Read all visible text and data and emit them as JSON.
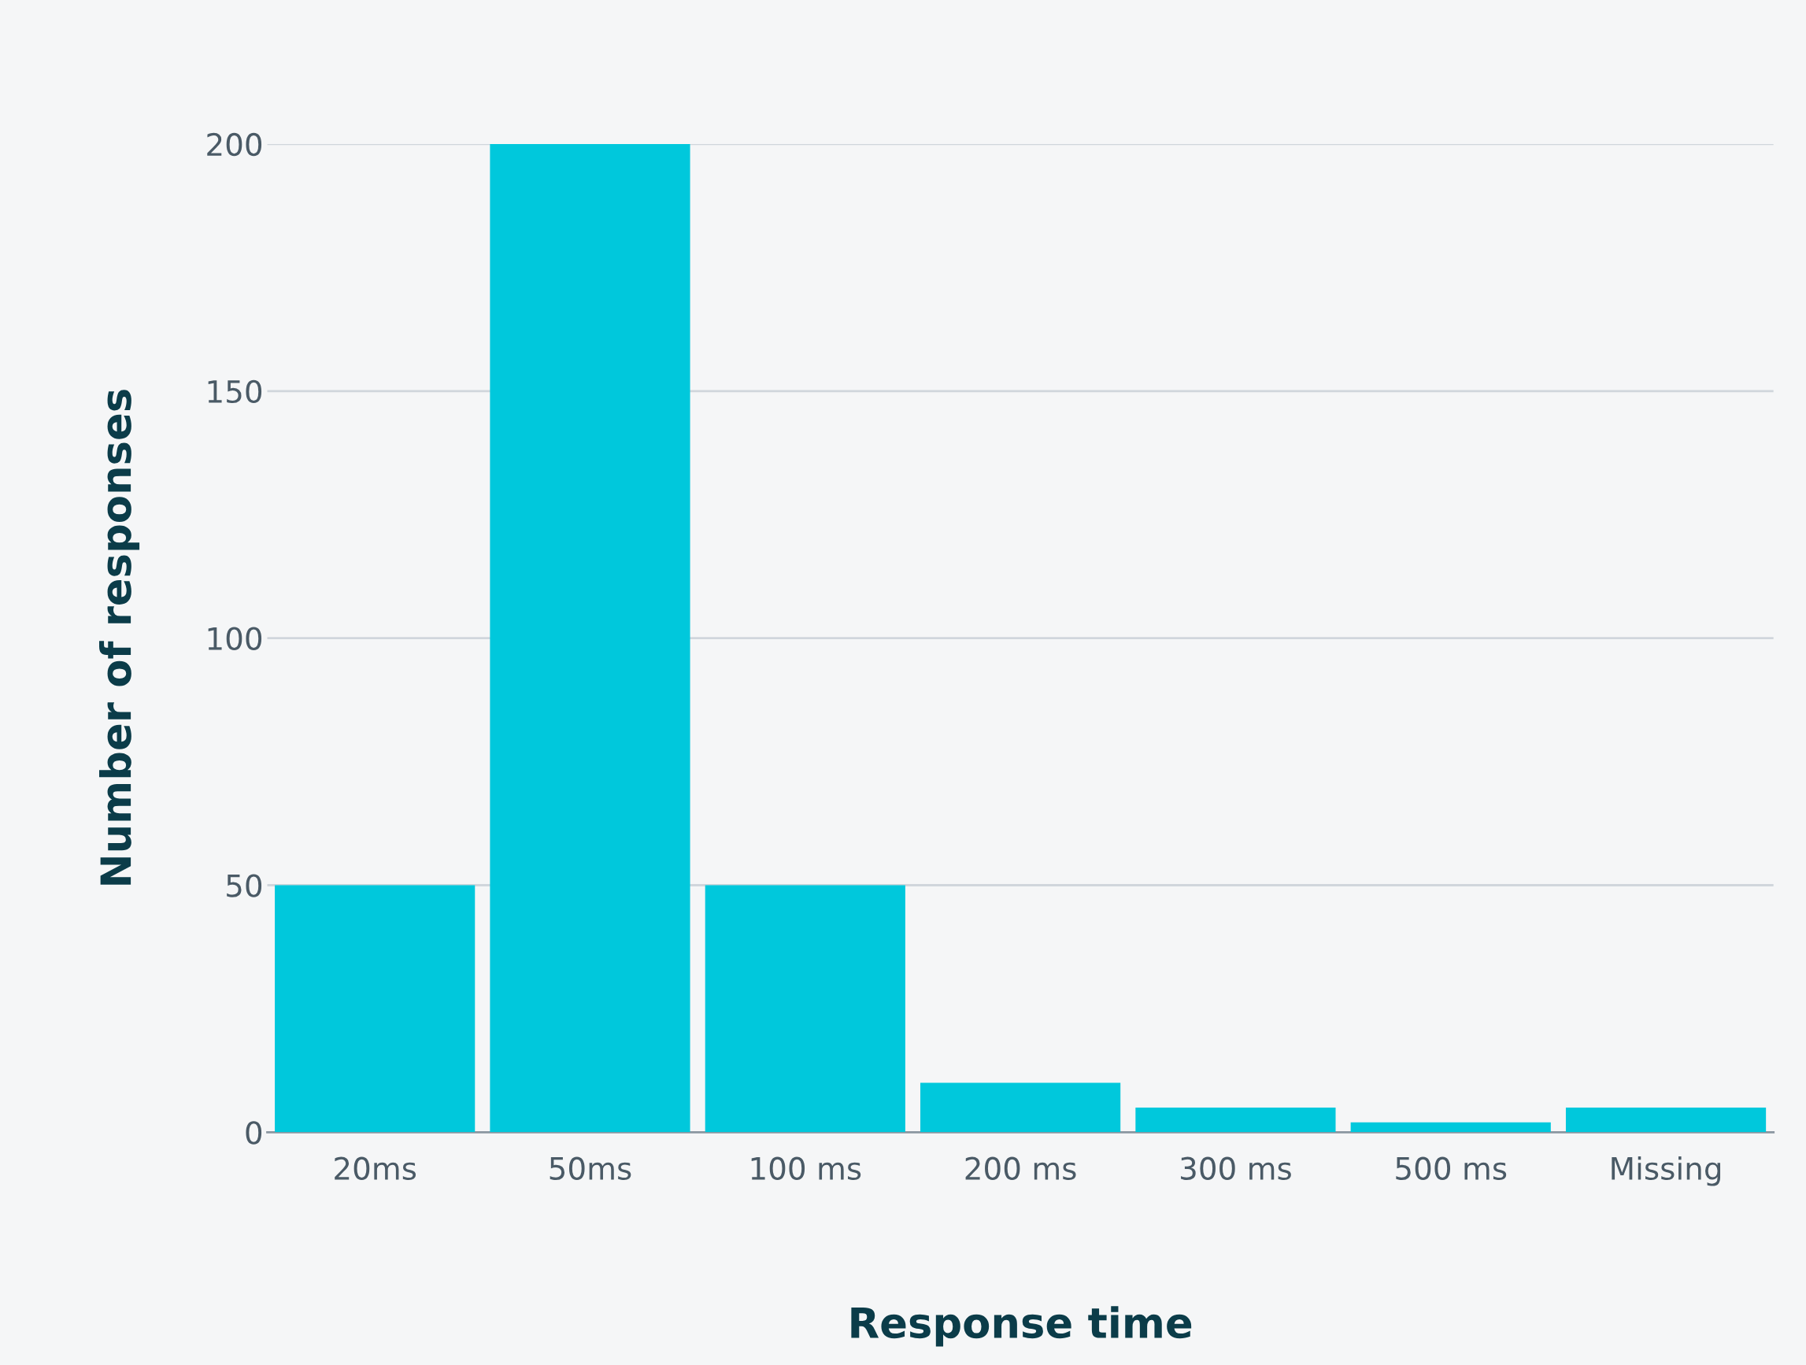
{
  "chart_data": {
    "type": "bar",
    "xlabel": "Response time",
    "ylabel": "Number of responses",
    "categories": [
      "20ms",
      "50ms",
      "100 ms",
      "200 ms",
      "300 ms",
      "500 ms",
      "Missing"
    ],
    "values": [
      50,
      200,
      50,
      10,
      5,
      2,
      5
    ],
    "color": "#00c8dc",
    "ylim": [
      0,
      200
    ],
    "yticks": [
      0,
      50,
      100,
      150,
      200
    ],
    "grid": "y",
    "legend": false
  }
}
